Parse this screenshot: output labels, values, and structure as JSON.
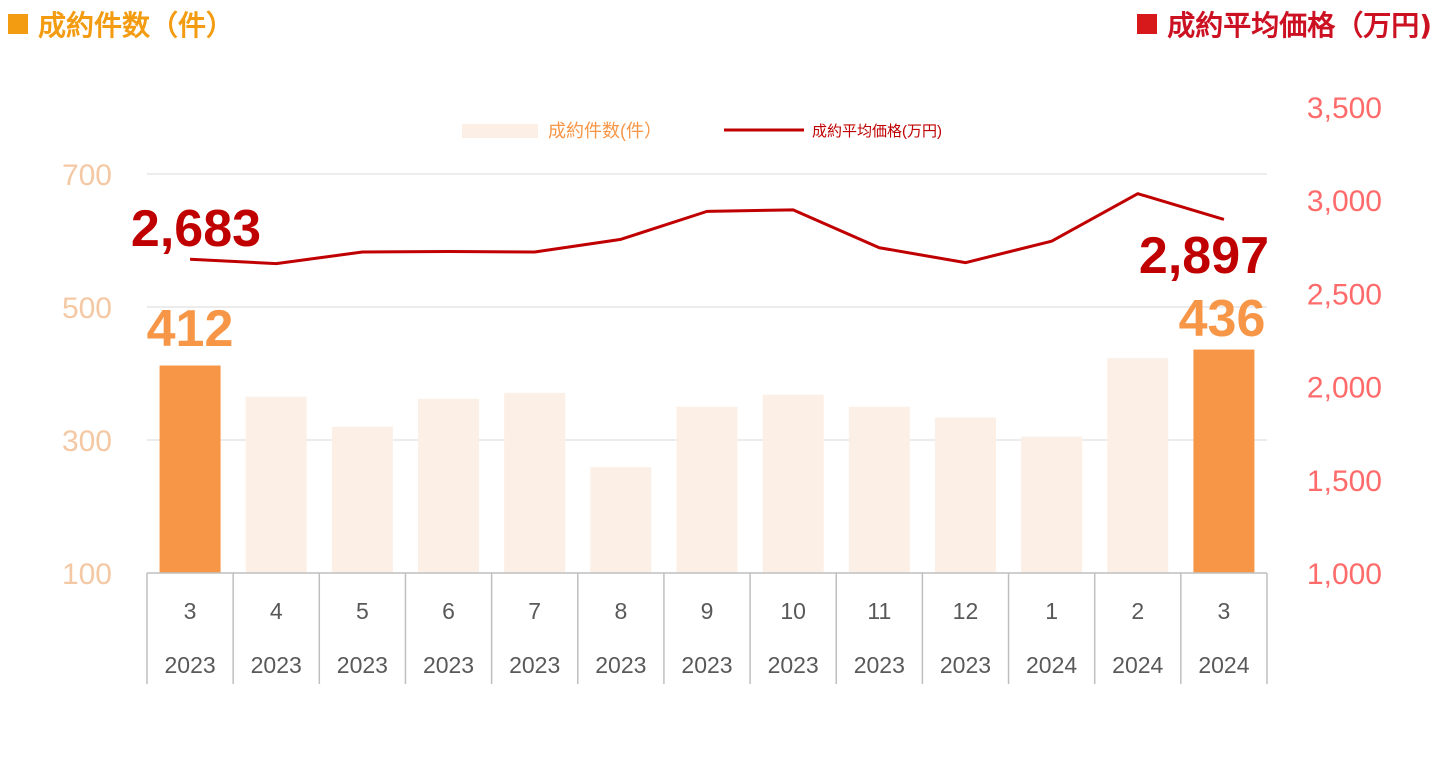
{
  "header": {
    "left_legend": "成約件数（件）",
    "right_legend": "成約平均価格（万円)",
    "left_color": "#f39c12",
    "right_color": "#d7191c"
  },
  "chart_data": {
    "type": "bar",
    "categories": [
      "3",
      "4",
      "5",
      "6",
      "7",
      "8",
      "9",
      "10",
      "11",
      "12",
      "1",
      "2",
      "3"
    ],
    "years": [
      "2023",
      "2023",
      "2023",
      "2023",
      "2023",
      "2023",
      "2023",
      "2023",
      "2023",
      "2023",
      "2024",
      "2024",
      "2024"
    ],
    "series": [
      {
        "name": "成約件数(件）",
        "type": "bar",
        "axis": "left",
        "values": [
          412,
          365,
          320,
          362,
          371,
          259,
          350,
          368,
          350,
          334,
          305,
          423,
          436
        ],
        "color": "#fcefe6",
        "highlight_color": "#f79646",
        "highlight_indices": [
          0,
          12
        ]
      },
      {
        "name": "成約平均価格(万円)",
        "type": "line",
        "axis": "right",
        "values": [
          2683,
          2660,
          2722,
          2725,
          2722,
          2790,
          2940,
          2948,
          2745,
          2665,
          2780,
          3035,
          2897
        ],
        "color": "#c00000"
      }
    ],
    "y_left": {
      "ticks": [
        "100",
        "300",
        "500",
        "700"
      ],
      "ylim": [
        100,
        700
      ],
      "color": "#f5c8a4"
    },
    "y_right": {
      "ticks": [
        "1,000",
        "1,500",
        "2,000",
        "2,500",
        "3,000",
        "3,500"
      ],
      "ylim": [
        1000,
        3500
      ],
      "color": "#ff6b6b"
    },
    "annotations": {
      "first_price": "2,683",
      "last_price": "2,897",
      "first_count": "412",
      "last_count": "436",
      "price_color": "#c00000",
      "count_color": "#f79646"
    },
    "legend": {
      "position": "top-center"
    },
    "grid": true
  }
}
